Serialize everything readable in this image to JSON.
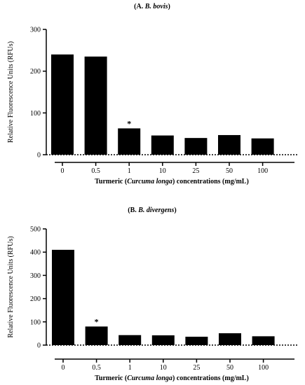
{
  "chart_data": [
    {
      "type": "bar",
      "title_prefix": "(A. ",
      "title_species": "B. bovis",
      "title_suffix": ")",
      "ylabel": "Relative Fluorescence Units (RFUs)",
      "xlabel_prefix": "Turmeric (",
      "xlabel_italic": "Curcuma longa",
      "xlabel_suffix": ") concentrations (mg/mL)",
      "categories": [
        "0",
        "0.5",
        "1",
        "10",
        "25",
        "50",
        "100"
      ],
      "values": [
        240,
        235,
        63,
        46,
        40,
        47,
        39
      ],
      "ylim": [
        0,
        300
      ],
      "yticks": [
        0,
        100,
        200,
        300
      ],
      "significance": [
        {
          "index": 2,
          "label": "*"
        }
      ],
      "baseline": "dotted",
      "bar_color": "#000000",
      "grid": false,
      "legend": "none"
    },
    {
      "type": "bar",
      "title_prefix": "(B. ",
      "title_species": "B. divergens",
      "title_suffix": ")",
      "ylabel": "Relative Fluorescence Units (RFUs)",
      "xlabel_prefix": "Turmeric (",
      "xlabel_italic": "Curcuma longa",
      "xlabel_suffix": ") concentrations (mg/mL)",
      "categories": [
        "0",
        "0.5",
        "1",
        "10",
        "25",
        "50",
        "100"
      ],
      "values": [
        410,
        80,
        43,
        42,
        36,
        51,
        38
      ],
      "ylim": [
        0,
        500
      ],
      "yticks": [
        0,
        100,
        200,
        300,
        400,
        500
      ],
      "significance": [
        {
          "index": 1,
          "label": "*"
        }
      ],
      "baseline": "dotted",
      "bar_color": "#000000",
      "grid": false,
      "legend": "none"
    }
  ]
}
